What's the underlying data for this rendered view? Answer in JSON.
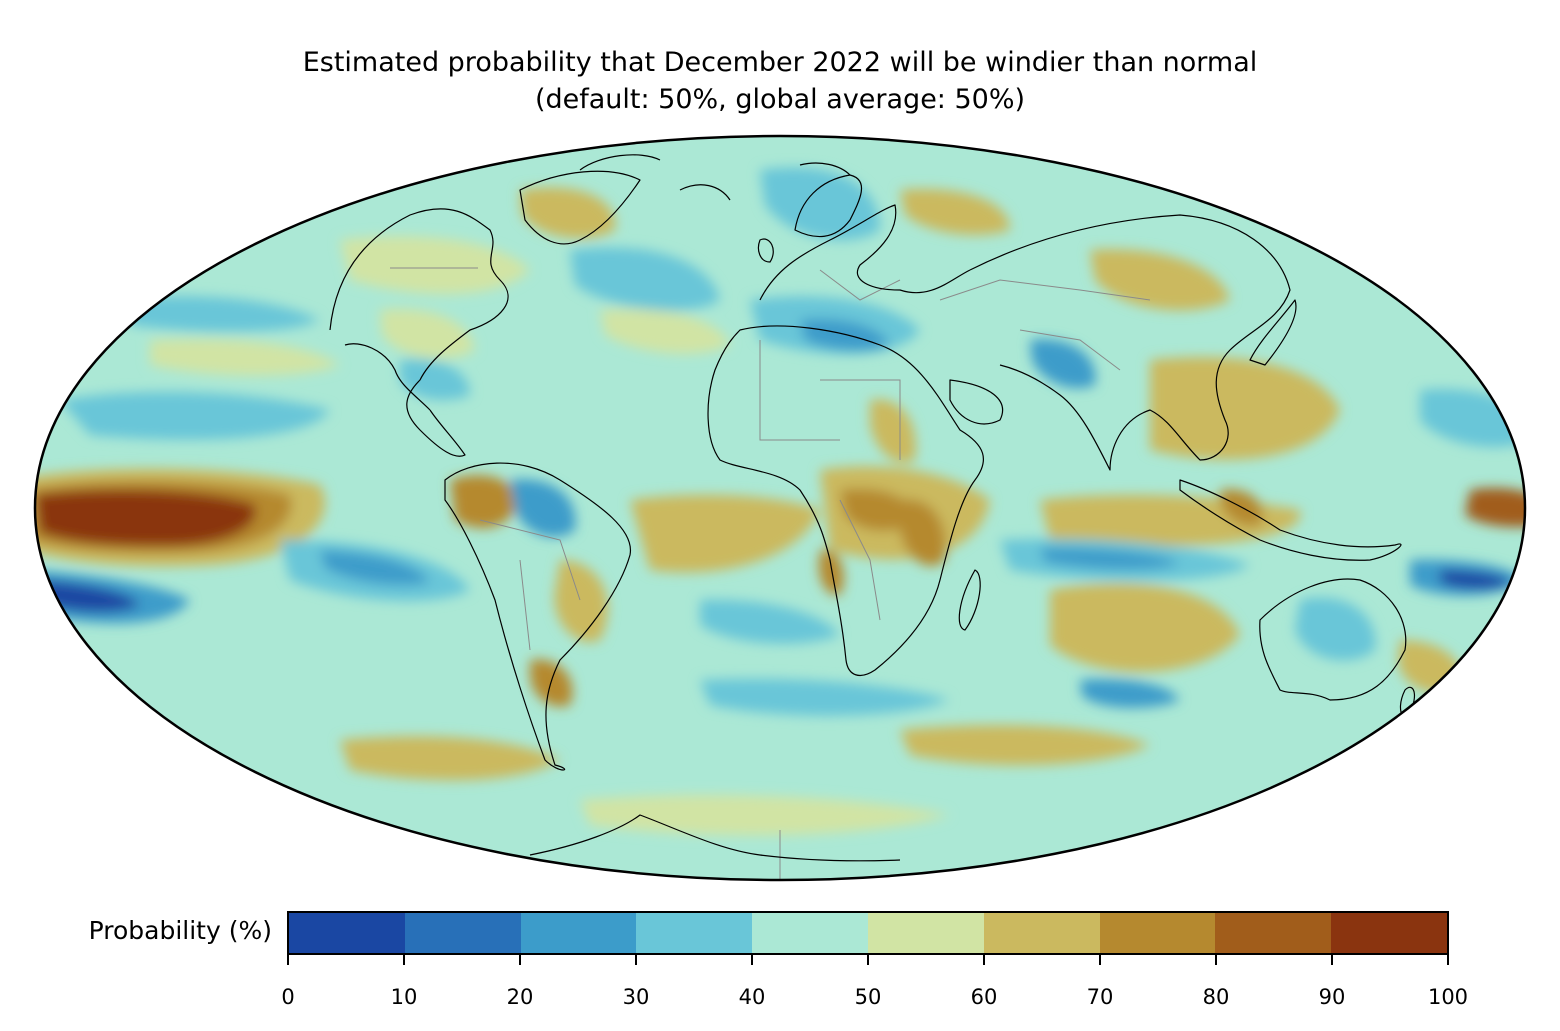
{
  "title": {
    "line1": "Estimated probability that December 2022 will be windier than normal",
    "line2": "(default: 50%, global average: 50%)"
  },
  "colorbar": {
    "label": "Probability (%)",
    "ticks": [
      "0",
      "10",
      "20",
      "30",
      "40",
      "50",
      "60",
      "70",
      "80",
      "90",
      "100"
    ],
    "colors": [
      "#1a47a3",
      "#2870b8",
      "#3c9cca",
      "#69c6d8",
      "#abe8d5",
      "#d1e4a4",
      "#cbb95f",
      "#b5892f",
      "#a15d1b",
      "#8a340f"
    ]
  },
  "map": {
    "projection": "Mollweide",
    "ocean_base_color": "#abe8d5",
    "coastline_color": "#000000",
    "border_color": "#8a8a8a"
  }
}
